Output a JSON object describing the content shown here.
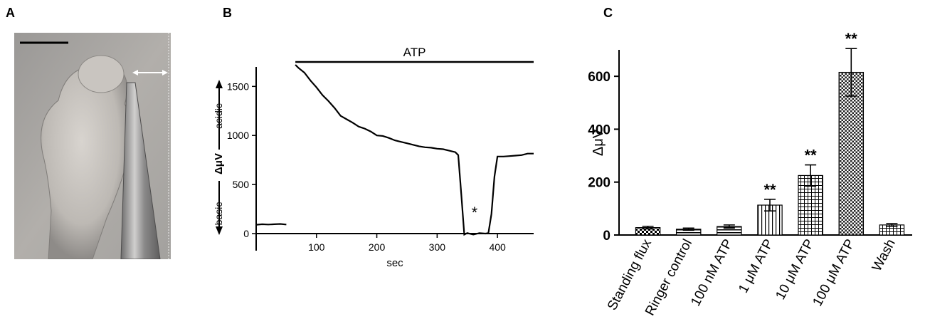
{
  "panels": {
    "a": {
      "letter": "A"
    },
    "b": {
      "letter": "B"
    },
    "c": {
      "letter": "C"
    }
  },
  "chart_data": [
    {
      "panel": "B",
      "type": "line",
      "xlabel": "sec",
      "ylabel": "ΔμV",
      "xlim": [
        0,
        460
      ],
      "ylim": [
        0,
        1800
      ],
      "xticks": [
        100,
        200,
        300,
        400
      ],
      "yticks": [
        0,
        500,
        1000,
        1500
      ],
      "direction_labels": {
        "up": "acidic",
        "down": "basic"
      },
      "treatment_bar": {
        "label": "ATP",
        "start": 65,
        "end": 460
      },
      "annotation": {
        "text": "*",
        "x": 362,
        "y": 260
      },
      "series": [
        {
          "x": [
            0,
            10,
            20,
            30,
            40,
            50,
            65,
            70,
            80,
            90,
            100,
            110,
            120,
            130,
            140,
            150,
            160,
            170,
            180,
            190,
            200,
            210,
            220,
            230,
            240,
            250,
            260,
            270,
            280,
            290,
            300,
            310,
            320,
            330,
            335,
            340,
            345,
            350,
            360,
            370,
            380,
            385,
            390,
            395,
            400,
            410,
            420,
            430,
            440,
            450,
            460
          ],
          "y": [
            90,
            95,
            92,
            95,
            98,
            92,
            1720,
            1690,
            1640,
            1560,
            1490,
            1410,
            1350,
            1280,
            1200,
            1165,
            1130,
            1090,
            1070,
            1040,
            1000,
            995,
            975,
            950,
            935,
            920,
            905,
            890,
            880,
            875,
            865,
            860,
            845,
            830,
            800,
            400,
            -10,
            5,
            -10,
            5,
            0,
            5,
            200,
            580,
            785,
            785,
            790,
            795,
            800,
            815,
            815
          ]
        }
      ]
    },
    {
      "panel": "C",
      "type": "bar",
      "ylabel": "ΔμV",
      "ylim": [
        0,
        700
      ],
      "yticks": [
        0,
        200,
        400,
        600
      ],
      "categories": [
        "Standing flux",
        "Ringer control",
        "100 nM ATP",
        "1 μM ATP",
        "10 μM ATP",
        "100 μM ATP",
        "Wash"
      ],
      "values": [
        28,
        22,
        32,
        113,
        225,
        615,
        38
      ],
      "errors": [
        5,
        4,
        6,
        22,
        40,
        90,
        5
      ],
      "significance": [
        "",
        "",
        "",
        "**",
        "**",
        "**",
        ""
      ],
      "patterns": [
        "checker",
        "hlines",
        "hlines",
        "vlines",
        "grid",
        "checker-fine",
        "grid"
      ]
    }
  ]
}
